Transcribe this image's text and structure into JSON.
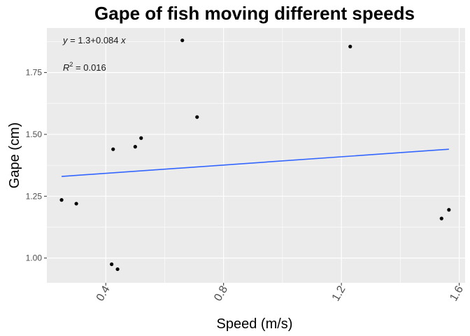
{
  "chart_data": {
    "type": "scatter",
    "title": "Gape of fish moving different speeds",
    "xlabel": "Speed (m/s)",
    "ylabel": "Gape (cm)",
    "xlim": [
      0.2,
      1.62
    ],
    "ylim": [
      0.9,
      1.93
    ],
    "x_ticks": [
      0.4,
      0.8,
      1.2,
      1.6
    ],
    "x_tick_labels": [
      "0.4",
      "0.8",
      "1.2",
      "1.6"
    ],
    "y_ticks": [
      1.0,
      1.25,
      1.5,
      1.75
    ],
    "y_tick_labels": [
      "1.00",
      "1.25",
      "1.50",
      "1.75"
    ],
    "grid": true,
    "legend": "none",
    "points": [
      {
        "x": 0.25,
        "y": 1.235
      },
      {
        "x": 0.3,
        "y": 1.22
      },
      {
        "x": 0.42,
        "y": 0.975
      },
      {
        "x": 0.425,
        "y": 1.44
      },
      {
        "x": 0.44,
        "y": 0.955
      },
      {
        "x": 0.5,
        "y": 1.45
      },
      {
        "x": 0.52,
        "y": 1.485
      },
      {
        "x": 0.66,
        "y": 1.88
      },
      {
        "x": 0.71,
        "y": 1.57
      },
      {
        "x": 1.23,
        "y": 1.855
      },
      {
        "x": 1.54,
        "y": 1.16
      },
      {
        "x": 1.565,
        "y": 1.195
      }
    ],
    "fit_line": {
      "x": [
        0.25,
        1.565
      ],
      "y": [
        1.33,
        1.44
      ],
      "color": "#3366ff"
    },
    "point_color": "#000000",
    "panel_background": "#ebebeb",
    "annotations": {
      "equation": {
        "y_var": "y",
        "rest": " = 1.3+0.084 ",
        "x_var": "x"
      },
      "r_squared": {
        "r": "R",
        "sup": "2",
        "rest": " = 0.016"
      }
    }
  }
}
